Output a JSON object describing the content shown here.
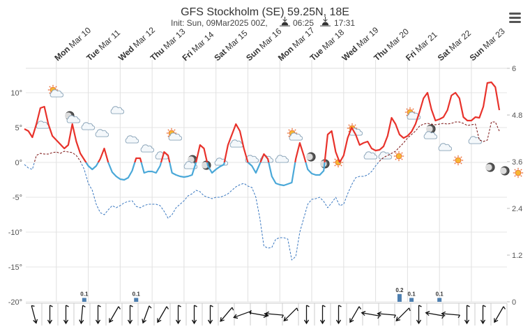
{
  "chart_data": {
    "type": "line",
    "title": "GFS Stockholm (SE) 59.25N, 18E",
    "init": "Init: Sun, 09Mar2025 00Z,",
    "sunrise": "06:25",
    "sunset": "17:31",
    "days": [
      {
        "day": "Mon",
        "date": "Mar 10"
      },
      {
        "day": "Tue",
        "date": "Mar 11"
      },
      {
        "day": "Wed",
        "date": "Mar 12"
      },
      {
        "day": "Thu",
        "date": "Mar 13"
      },
      {
        "day": "Fri",
        "date": "Mar 14"
      },
      {
        "day": "Sat",
        "date": "Mar 15"
      },
      {
        "day": "Sun",
        "date": "Mar 16"
      },
      {
        "day": "Mon",
        "date": "Mar 17"
      },
      {
        "day": "Tue",
        "date": "Mar 18"
      },
      {
        "day": "Wed",
        "date": "Mar 19"
      },
      {
        "day": "Thu",
        "date": "Mar 20"
      },
      {
        "day": "Fri",
        "date": "Mar 21"
      },
      {
        "day": "Sat",
        "date": "Mar 22"
      },
      {
        "day": "Sun",
        "date": "Mar 23"
      }
    ],
    "ylim": [
      -20,
      13.5
    ],
    "yticks": [
      {
        "value": -20,
        "label": "-20°"
      },
      {
        "value": -15,
        "label": "-15°"
      },
      {
        "value": -10,
        "label": "-10°"
      },
      {
        "value": -5,
        "label": "-5°"
      },
      {
        "value": 0,
        "label": "0°"
      },
      {
        "value": 5,
        "label": "5°"
      },
      {
        "value": 10,
        "label": "10°"
      }
    ],
    "y2lim": [
      0,
      6
    ],
    "y2ticks": [
      0,
      1.2,
      2.4,
      3.6,
      4.8,
      6
    ],
    "grid": true,
    "series": [
      {
        "type": "line",
        "color": "#e8322b",
        "negative_color": "#4aa8d8",
        "dashed": false,
        "values": [
          4.8,
          4.5,
          3.6,
          5.5,
          7.8,
          8,
          5.5,
          3.8,
          3.2,
          2.6,
          2,
          2.5,
          5.5,
          3,
          1.3,
          0.4,
          -0.5,
          -1,
          -0.5,
          0.5,
          2,
          0,
          -1.4,
          -2,
          -2.4,
          -2.5,
          -2.2,
          -1.2,
          0.6,
          0.6,
          -1.5,
          -1.3,
          -1.3,
          -1.5,
          -0.5,
          1.5,
          1,
          -1.5,
          -1.8,
          -2,
          -2.1,
          -2,
          -1.8,
          0,
          2.5,
          2,
          -0.5,
          -1.5,
          -1,
          -0.6,
          -0.3,
          2.5,
          4,
          5.5,
          4.5,
          2,
          0,
          -0.5,
          -1.5,
          -0.2,
          1.2,
          0.5,
          -2,
          -3,
          -3.2,
          -3.3,
          -3.1,
          -2.9,
          0.5,
          2.8,
          1,
          -1,
          -1.6,
          -1.8,
          -1.8,
          -1.2,
          4,
          4.5,
          1.5,
          0,
          1,
          3.5,
          5,
          4,
          2.5,
          2.8,
          3,
          2,
          1.7,
          1.8,
          2.3,
          3.8,
          6.4,
          5.5,
          4,
          3.5,
          3.8,
          4.4,
          5.5,
          7.2,
          9.2,
          10,
          7.6,
          6,
          6.2,
          6.5,
          7.5,
          9.6,
          10,
          9.2,
          6.5,
          6,
          6,
          6.5,
          6.4,
          8,
          11.4,
          11.5,
          10.8,
          7.5
        ]
      },
      {
        "type": "line",
        "color": "#7a1010",
        "negative_color": "#3a78c0",
        "dashed": true,
        "values": [
          -0.3,
          -0.8,
          -1,
          1,
          1.3,
          1.2,
          1.2,
          1.4,
          1.5,
          1.3,
          1.6,
          1.5,
          1.4,
          1,
          0.2,
          -1,
          -3,
          -4,
          -6,
          -7.2,
          -7.5,
          -6.8,
          -6.2,
          -6.5,
          -6.2,
          -5.8,
          -5.6,
          -5.5,
          -6.3,
          -6.5,
          -6.2,
          -6,
          -6,
          -6,
          -6.2,
          -7,
          -8,
          -7.5,
          -6.5,
          -6,
          -5.5,
          -4.8,
          -4.5,
          -4,
          -4.2,
          -4.8,
          -5,
          -5.2,
          -5,
          -5,
          -4.8,
          -4.5,
          -4,
          -3.5,
          -3.2,
          -3,
          -3.4,
          -3.6,
          -5,
          -8,
          -12,
          -12.3,
          -12.2,
          -11,
          -10.8,
          -10.8,
          -11,
          -14,
          -13.5,
          -10,
          -8,
          -6,
          -5.3,
          -5.2,
          -5,
          -5.6,
          -6.5,
          -5.8,
          -5,
          -6.2,
          -6,
          -4.5,
          -3.2,
          -2.2,
          -2,
          -2,
          -1.8,
          -1.3,
          -0.5,
          0.2,
          0.7,
          1,
          1.3,
          1.6,
          2.2,
          2.8,
          3.5,
          4,
          4.5,
          5.2,
          5.5,
          5.6,
          5.5,
          5.4,
          5.5,
          5.6,
          5.5,
          5.6,
          5.8,
          5.8,
          5.6,
          5.3,
          5.4,
          5.5,
          3.2,
          3,
          3.2,
          5.8,
          5.8,
          4.5
        ]
      },
      {
        "type": "bar",
        "axis": "y2",
        "color": "#4d7fb0",
        "values": [
          0,
          0,
          0,
          0,
          0,
          0,
          0,
          0,
          0,
          0,
          0,
          0,
          0,
          0,
          0,
          0.1,
          0,
          0,
          0,
          0,
          0,
          0,
          0,
          0,
          0,
          0,
          0,
          0,
          0.1,
          0,
          0,
          0,
          0,
          0,
          0,
          0,
          0,
          0,
          0,
          0,
          0,
          0,
          0,
          0,
          0,
          0,
          0,
          0,
          0,
          0,
          0,
          0,
          0,
          0,
          0,
          0,
          0,
          0,
          0,
          0,
          0,
          0,
          0,
          0,
          0,
          0,
          0,
          0,
          0,
          0,
          0,
          0,
          0,
          0,
          0,
          0,
          0,
          0,
          0,
          0,
          0,
          0,
          0,
          0,
          0,
          0,
          0,
          0,
          0,
          0,
          0,
          0,
          0,
          0,
          0.2,
          0,
          0,
          0.1,
          0,
          0,
          0,
          0,
          0,
          0,
          0.1,
          0,
          0,
          0,
          0,
          0,
          0,
          0,
          0,
          0,
          0,
          0,
          0,
          0,
          0,
          0
        ]
      }
    ],
    "wind": {
      "color": "#111111",
      "values": [
        345,
        0,
        0,
        5,
        0,
        30,
        0,
        20,
        30,
        0,
        0,
        0,
        40,
        70,
        280,
        95,
        45,
        0,
        0,
        0,
        30,
        100,
        95,
        45,
        0,
        100,
        95,
        0,
        0,
        30
      ]
    }
  }
}
